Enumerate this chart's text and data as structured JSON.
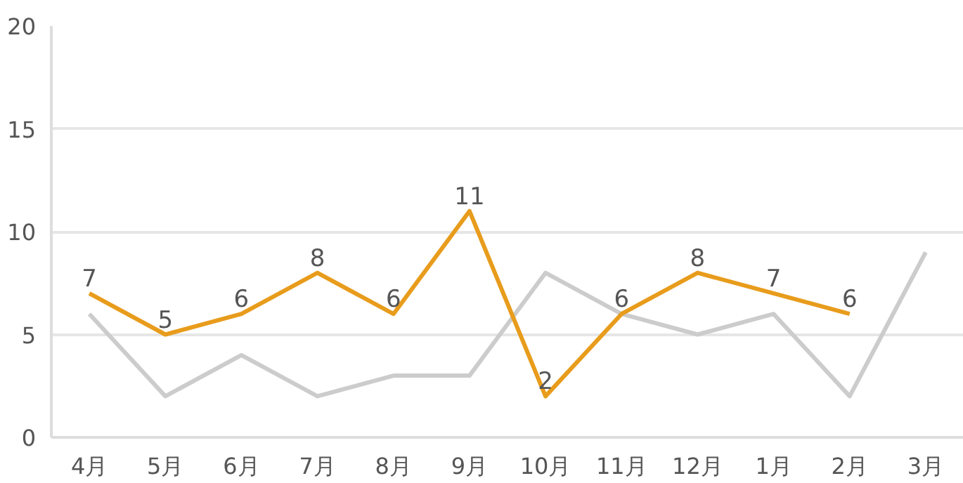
{
  "chart_data": {
    "type": "line",
    "categories": [
      "4月",
      "5月",
      "6月",
      "7月",
      "8月",
      "9月",
      "10月",
      "11月",
      "12月",
      "1月",
      "2月",
      "3月"
    ],
    "series": [
      {
        "color": "#cccccc",
        "values": [
          6,
          2,
          4,
          2,
          3,
          3,
          8,
          6,
          5,
          6,
          2,
          9
        ]
      },
      {
        "color": "#e89c1c",
        "values": [
          7,
          5,
          6,
          8,
          6,
          11,
          2,
          6,
          8,
          7,
          6,
          null
        ],
        "value_labels": [
          "7",
          "5",
          "6",
          "8",
          "6",
          "11",
          "2",
          "6",
          "8",
          "7",
          "6",
          null
        ]
      }
    ],
    "ylim": [
      0,
      20
    ],
    "yticks": [
      0,
      5,
      10,
      15,
      20
    ],
    "grid": "y",
    "marker": "none",
    "line_style": "solid"
  }
}
